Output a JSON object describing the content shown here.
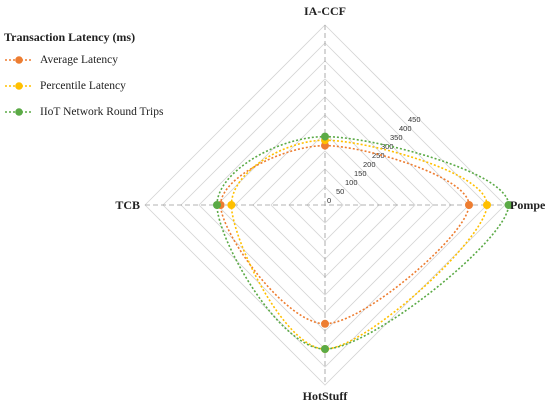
{
  "chart_data": {
    "type": "radar",
    "title": "Transaction Latency (ms)",
    "axes": [
      "IA-CCF",
      "Pompe",
      "HotStuff",
      "TCB"
    ],
    "r_range": [
      0,
      500
    ],
    "r_ticks": [
      "0",
      "50",
      "100",
      "150",
      "200",
      "250",
      "300",
      "350",
      "400",
      "450"
    ],
    "grid": true,
    "legend_position": "top-left",
    "series": [
      {
        "name": "Average Latency",
        "color": "#ED7D31",
        "values": [
          165,
          400,
          330,
          290
        ]
      },
      {
        "name": "Percentile Latency",
        "color": "#FFC000",
        "values": [
          180,
          450,
          400,
          260
        ]
      },
      {
        "name": "IIoT Network Round Trips",
        "color": "#5BAA46",
        "values": [
          190,
          510,
          400,
          300
        ]
      }
    ]
  }
}
